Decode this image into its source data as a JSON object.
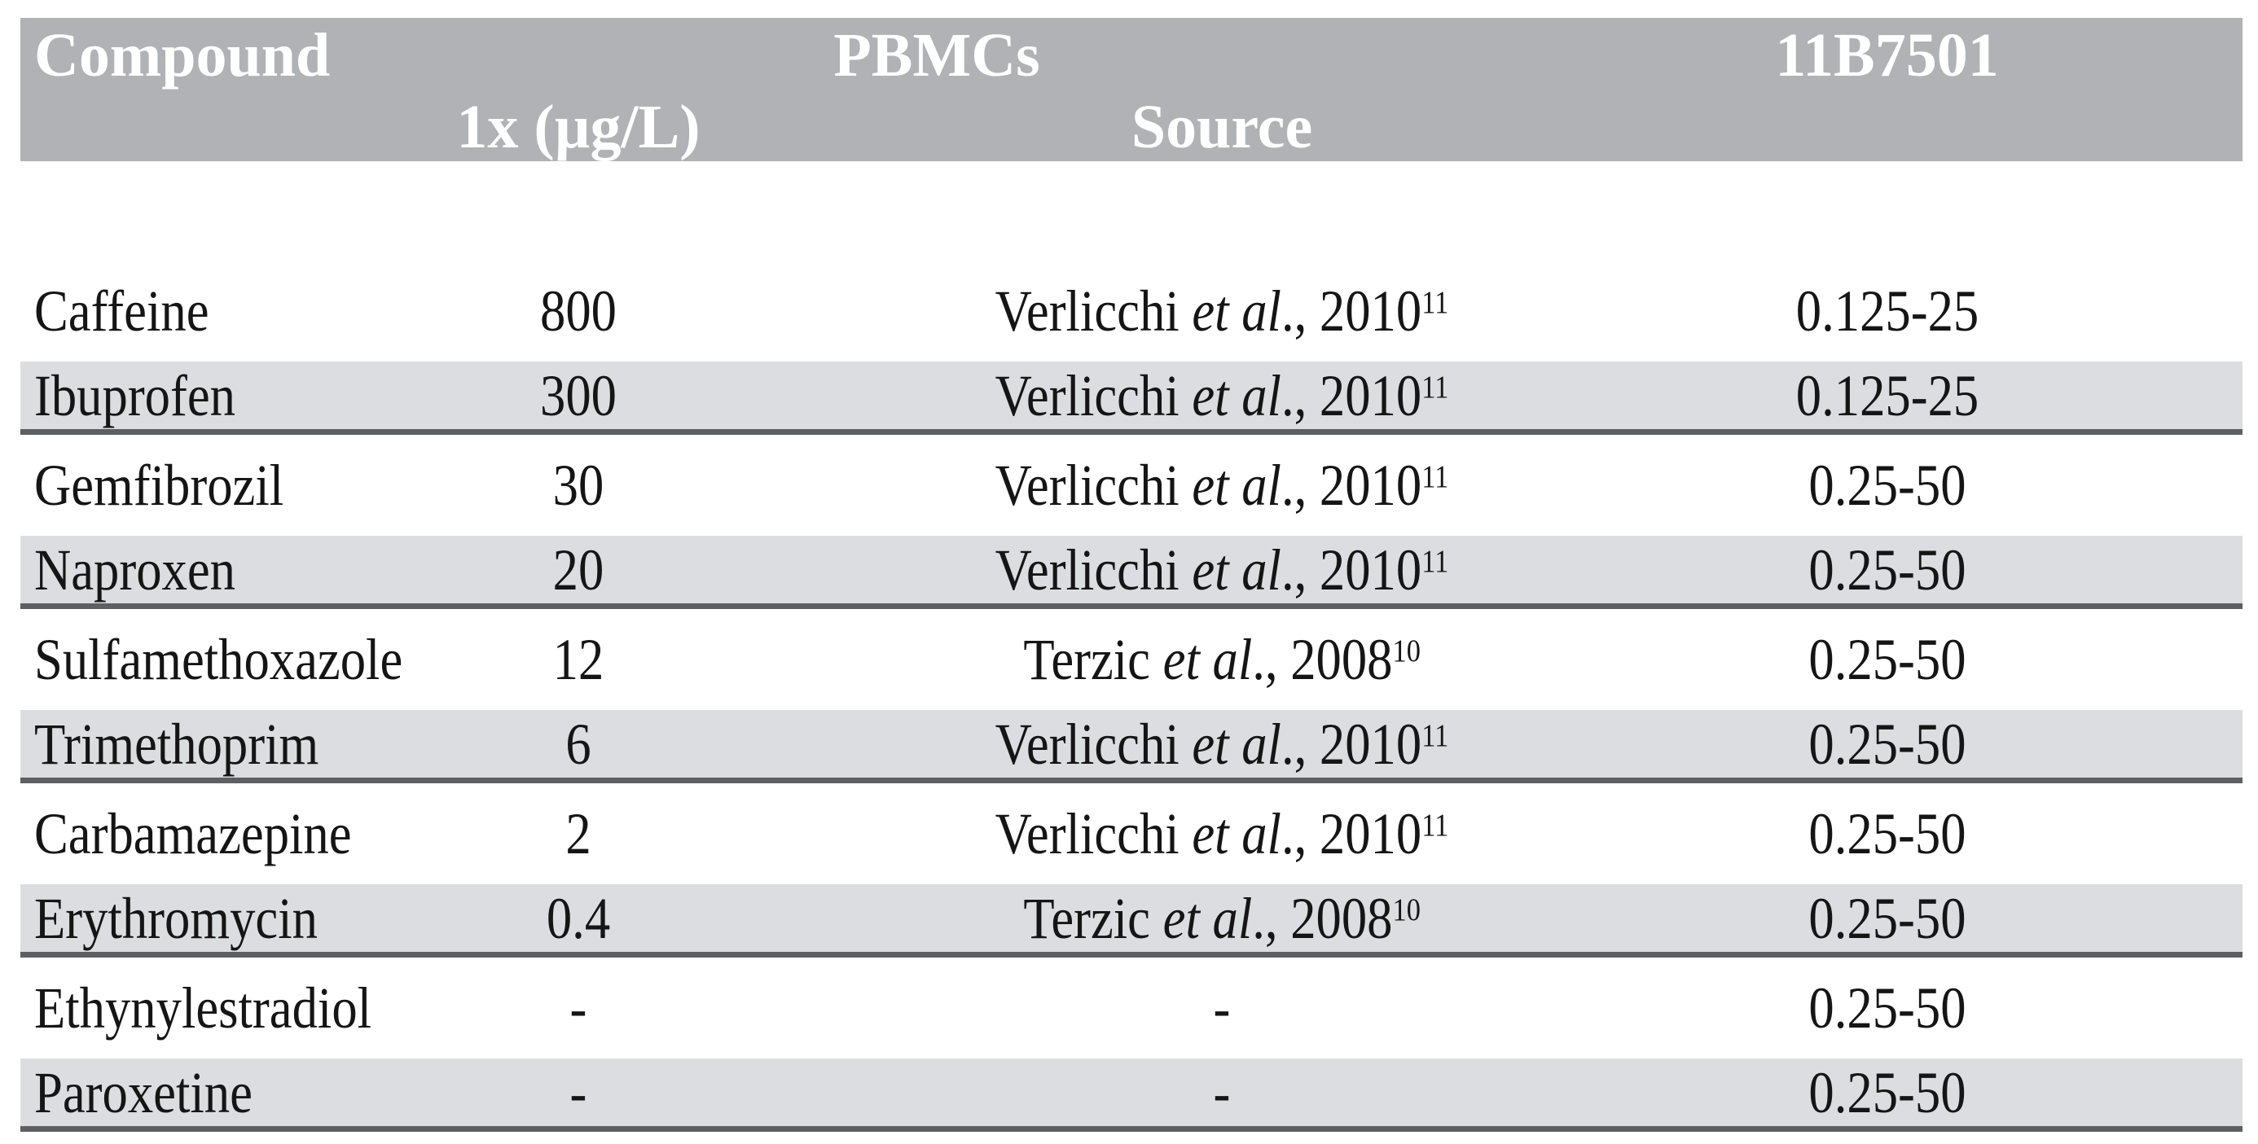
{
  "table": {
    "header": {
      "col_compound": "Compound",
      "group_pbmcs": "PBMCs",
      "col_code": "11B7501",
      "sub_concentration": "1x (µg/L)",
      "sub_source": "Source"
    },
    "colors": {
      "header_bg": "#b0b2b5",
      "shaded_row_bg": "#dcdde0",
      "row_rule": "#5d5f62",
      "header_text": "#ffffff",
      "body_text": "#151515"
    },
    "rows": [
      {
        "compound": "Caffeine",
        "concentration": "800",
        "source_pre": "Verlicchi ",
        "source_italic": "et al",
        "source_post": "., 2010",
        "source_sup": "11",
        "range": "0.125-25",
        "shaded": false
      },
      {
        "compound": "Ibuprofen",
        "concentration": "300",
        "source_pre": "Verlicchi ",
        "source_italic": "et al",
        "source_post": "., 2010",
        "source_sup": "11",
        "range": "0.125-25",
        "shaded": true
      },
      {
        "compound": "Gemfibrozil",
        "concentration": "30",
        "source_pre": "Verlicchi ",
        "source_italic": "et al",
        "source_post": "., 2010",
        "source_sup": "11",
        "range": "0.25-50",
        "shaded": false
      },
      {
        "compound": "Naproxen",
        "concentration": "20",
        "source_pre": "Verlicchi ",
        "source_italic": "et al",
        "source_post": "., 2010",
        "source_sup": "11",
        "range": "0.25-50",
        "shaded": true
      },
      {
        "compound": "Sulfamethoxazole",
        "concentration": "12",
        "source_pre": "Terzic ",
        "source_italic": "et al",
        "source_post": "., 2008",
        "source_sup": "10",
        "range": "0.25-50",
        "shaded": false
      },
      {
        "compound": "Trimethoprim",
        "concentration": "6",
        "source_pre": "Verlicchi ",
        "source_italic": "et al",
        "source_post": "., 2010",
        "source_sup": "11",
        "range": "0.25-50",
        "shaded": true
      },
      {
        "compound": "Carbamazepine",
        "concentration": "2",
        "source_pre": "Verlicchi ",
        "source_italic": "et al",
        "source_post": "., 2010",
        "source_sup": "11",
        "range": "0.25-50",
        "shaded": false
      },
      {
        "compound": "Erythromycin",
        "concentration": "0.4",
        "source_pre": "Terzic ",
        "source_italic": "et al",
        "source_post": "., 2008",
        "source_sup": "10",
        "range": "0.25-50",
        "shaded": true
      },
      {
        "compound": "Ethynylestradiol",
        "concentration": "-",
        "source_pre": "-",
        "source_italic": "",
        "source_post": "",
        "source_sup": "",
        "range": "0.25-50",
        "shaded": false
      },
      {
        "compound": "Paroxetine",
        "concentration": "-",
        "source_pre": "-",
        "source_italic": "",
        "source_post": "",
        "source_sup": "",
        "range": "0.25-50",
        "shaded": true
      }
    ]
  }
}
